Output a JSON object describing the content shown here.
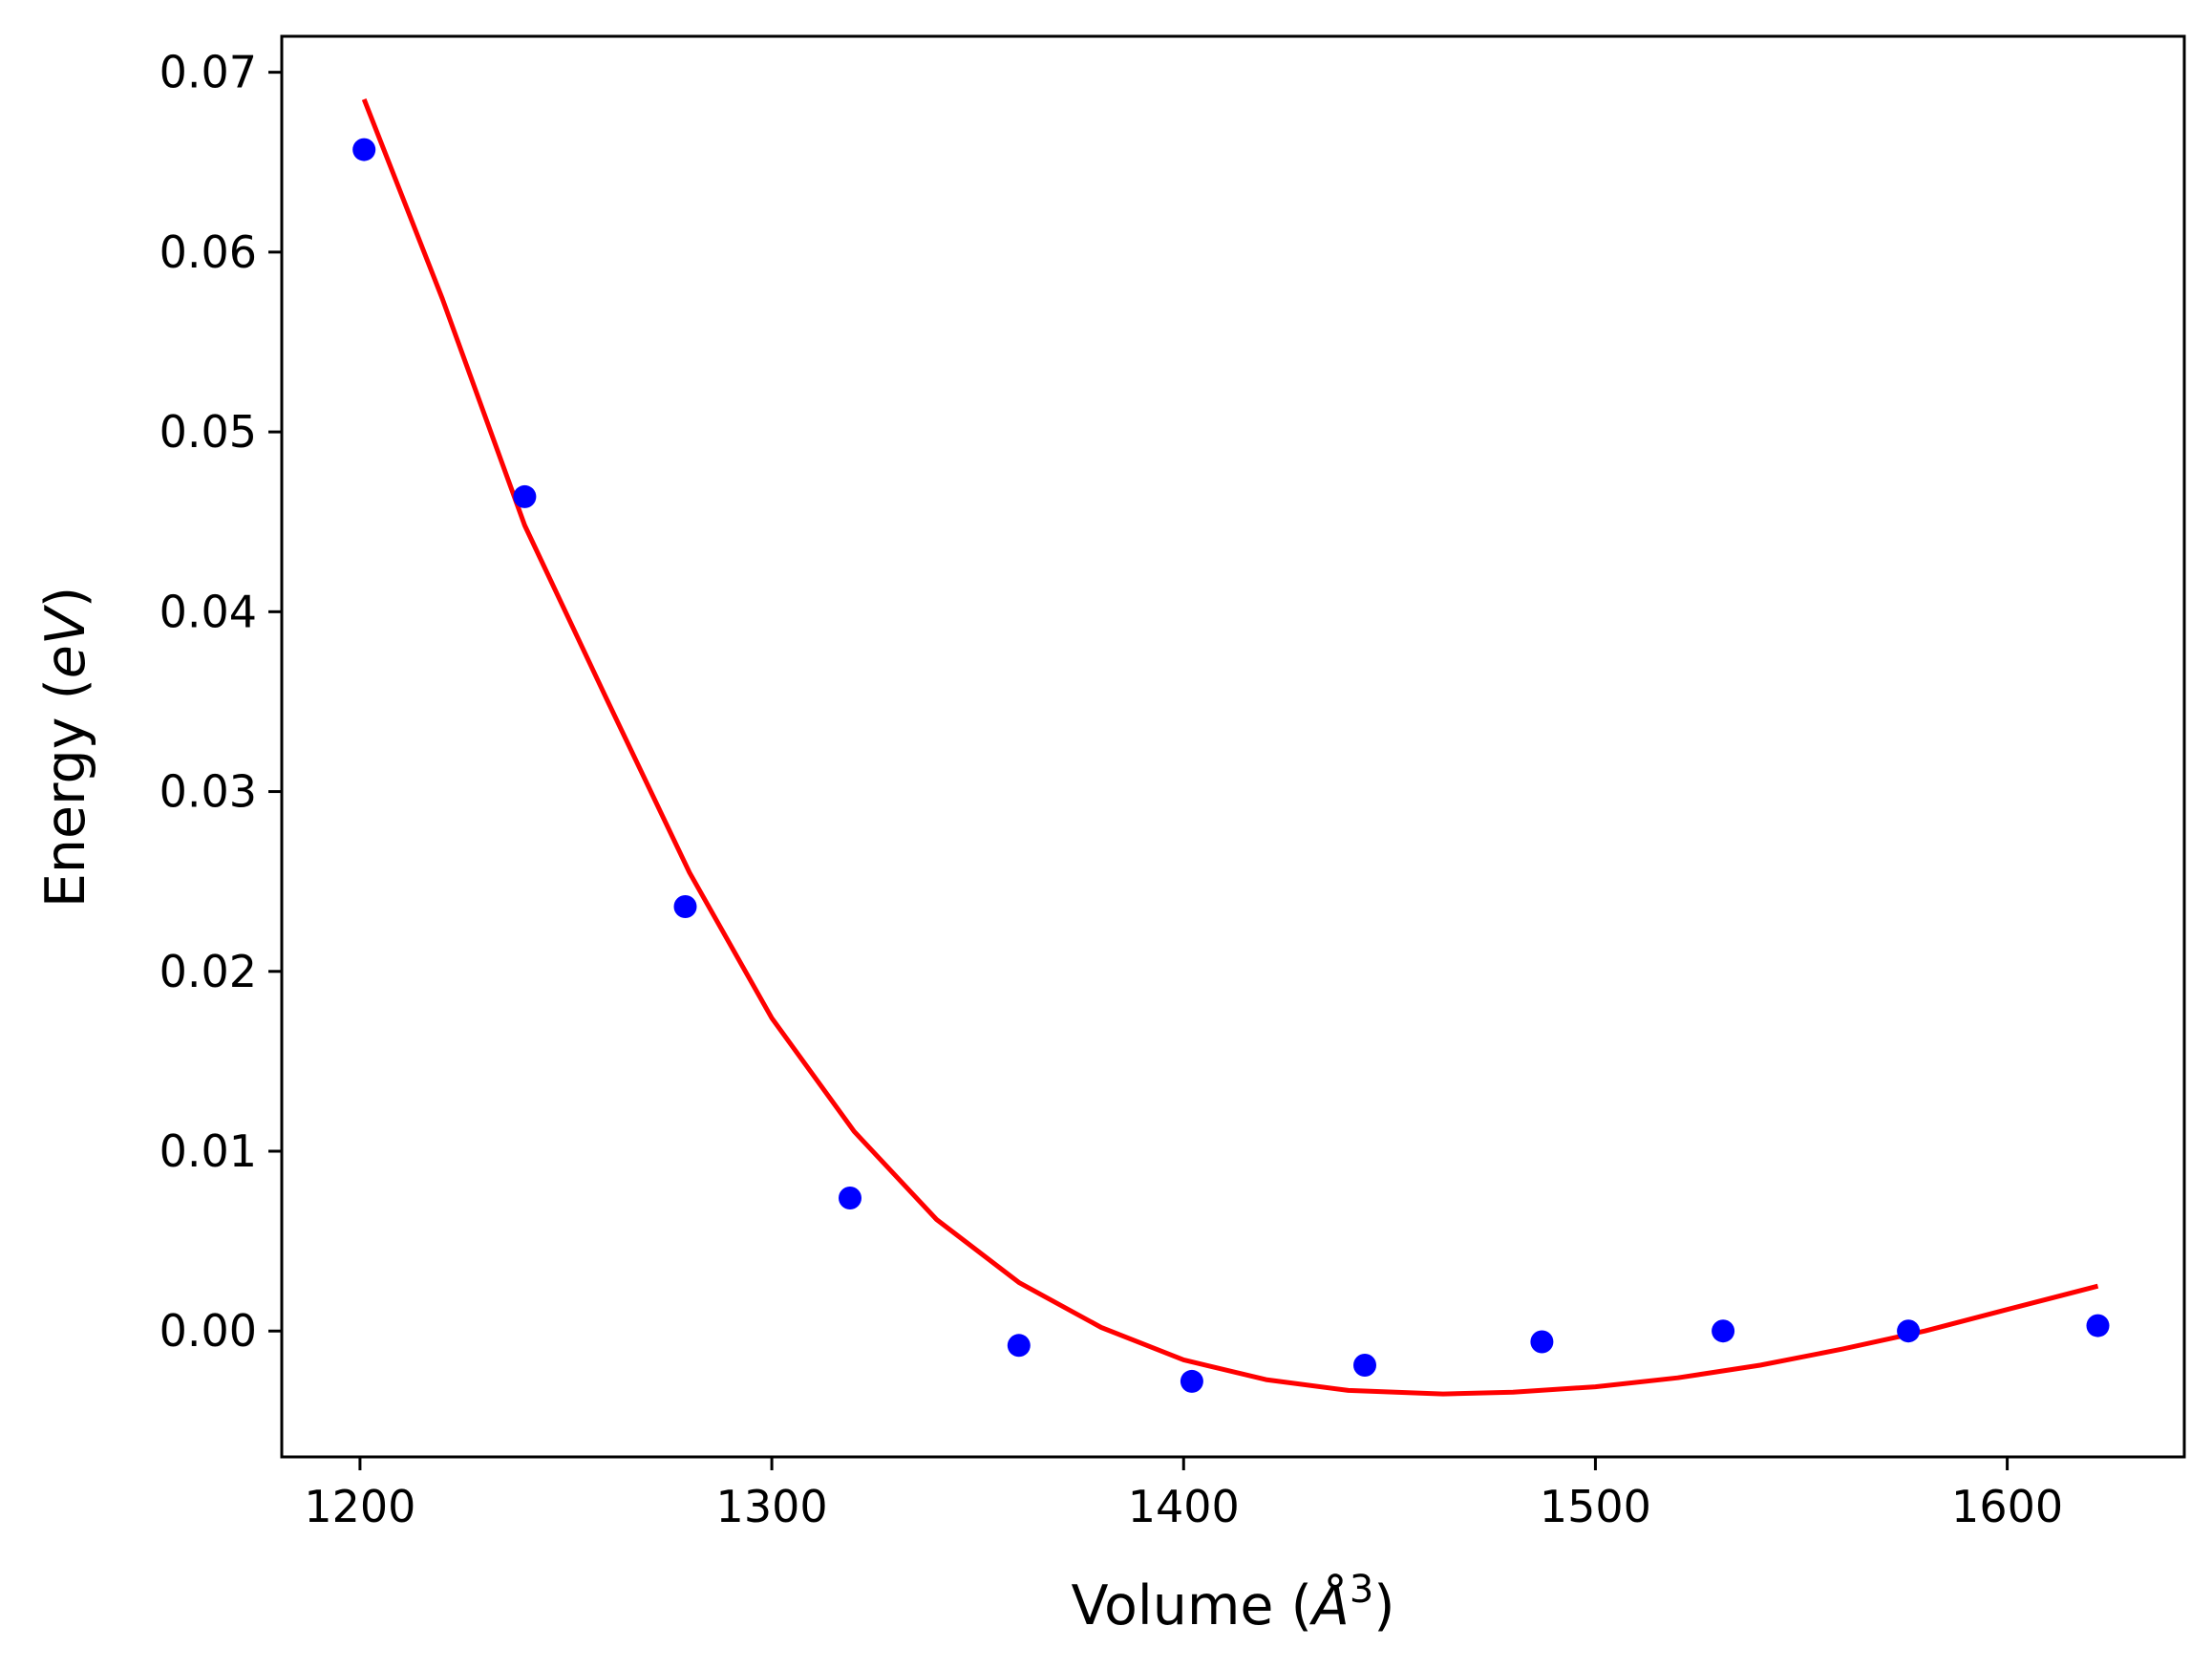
{
  "chart_data": {
    "type": "scatter",
    "title": "",
    "xlabel": {
      "prefix": "Volume (",
      "symbol": "Å",
      "sup": "3",
      "suffix": ")"
    },
    "ylabel": {
      "prefix": "Energy (",
      "italic": "eV",
      "suffix": ")"
    },
    "xlim": [
      1181,
      1643
    ],
    "ylim": [
      -0.007,
      0.072
    ],
    "xticks": [
      1200,
      1300,
      1400,
      1500,
      1600
    ],
    "xtick_labels": [
      "1200",
      "1300",
      "1400",
      "1500",
      "1600"
    ],
    "yticks": [
      0.0,
      0.01,
      0.02,
      0.03,
      0.04,
      0.05,
      0.06,
      0.07
    ],
    "ytick_labels": [
      "0.00",
      "0.01",
      "0.02",
      "0.03",
      "0.04",
      "0.05",
      "0.06",
      "0.07"
    ],
    "grid": false,
    "series": [
      {
        "kind": "scatter",
        "color": "#0000ff",
        "x": [
          1201,
          1240,
          1279,
          1319,
          1360,
          1402,
          1444,
          1487,
          1531,
          1576,
          1622
        ],
        "y": [
          0.0657,
          0.0464,
          0.0236,
          0.0074,
          -0.0008,
          -0.0028,
          -0.0019,
          -0.0006,
          0.0,
          0.0,
          0.0003
        ]
      },
      {
        "kind": "line",
        "color": "#ff0000",
        "x": [
          1201,
          1220,
          1240,
          1260,
          1280,
          1300,
          1320,
          1340,
          1360,
          1380,
          1400,
          1420,
          1440,
          1463,
          1480,
          1500,
          1520,
          1540,
          1560,
          1580,
          1600,
          1622
        ],
        "y": [
          0.0685,
          0.0574,
          0.0448,
          0.0351,
          0.0255,
          0.0174,
          0.0111,
          0.0062,
          0.0027,
          0.0002,
          -0.0016,
          -0.0027,
          -0.0033,
          -0.0035,
          -0.0034,
          -0.0031,
          -0.0026,
          -0.0019,
          -0.001,
          0.0,
          0.0012,
          0.0025
        ]
      }
    ]
  }
}
